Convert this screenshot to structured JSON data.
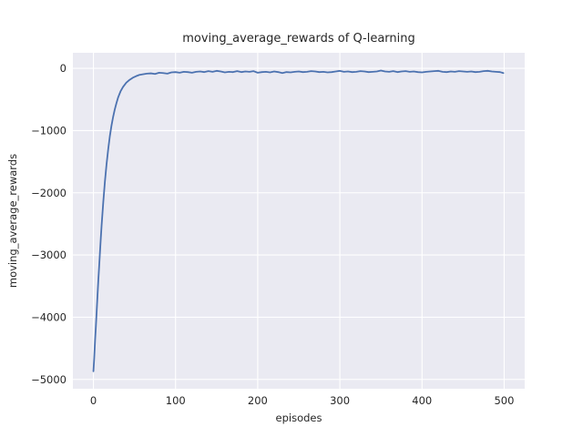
{
  "figure": {
    "background": "#ffffff"
  },
  "chart_data": {
    "type": "line",
    "title": "moving_average_rewards of Q-learning",
    "xlabel": "episodes",
    "ylabel": "moving_average_rewards",
    "xlim": [
      -25,
      525
    ],
    "ylim": [
      -5150,
      250
    ],
    "x_ticks": [
      0,
      100,
      200,
      300,
      400,
      500
    ],
    "y_ticks": [
      0,
      -1000,
      -2000,
      -3000,
      -4000,
      -5000
    ],
    "grid": true,
    "legend_position": "none",
    "plot_background": "#eaeaf2",
    "grid_color": "#ffffff",
    "line_color": "#4c72b0",
    "series": [
      {
        "name": "moving_average_rewards",
        "points": [
          [
            0,
            -4870
          ],
          [
            1,
            -4650
          ],
          [
            2,
            -4380
          ],
          [
            3,
            -4150
          ],
          [
            4,
            -3900
          ],
          [
            5,
            -3650
          ],
          [
            6,
            -3400
          ],
          [
            7,
            -3180
          ],
          [
            8,
            -2950
          ],
          [
            9,
            -2730
          ],
          [
            10,
            -2520
          ],
          [
            12,
            -2150
          ],
          [
            14,
            -1820
          ],
          [
            16,
            -1540
          ],
          [
            18,
            -1300
          ],
          [
            20,
            -1090
          ],
          [
            22,
            -920
          ],
          [
            24,
            -780
          ],
          [
            26,
            -660
          ],
          [
            28,
            -560
          ],
          [
            30,
            -470
          ],
          [
            33,
            -370
          ],
          [
            36,
            -300
          ],
          [
            40,
            -230
          ],
          [
            44,
            -185
          ],
          [
            48,
            -150
          ],
          [
            52,
            -125
          ],
          [
            56,
            -105
          ],
          [
            60,
            -95
          ],
          [
            65,
            -85
          ],
          [
            70,
            -80
          ],
          [
            75,
            -90
          ],
          [
            80,
            -70
          ],
          [
            85,
            -75
          ],
          [
            90,
            -85
          ],
          [
            95,
            -65
          ],
          [
            100,
            -60
          ],
          [
            105,
            -70
          ],
          [
            110,
            -55
          ],
          [
            115,
            -60
          ],
          [
            120,
            -70
          ],
          [
            125,
            -55
          ],
          [
            130,
            -50
          ],
          [
            135,
            -60
          ],
          [
            140,
            -45
          ],
          [
            145,
            -55
          ],
          [
            150,
            -40
          ],
          [
            155,
            -50
          ],
          [
            160,
            -65
          ],
          [
            165,
            -55
          ],
          [
            170,
            -60
          ],
          [
            175,
            -45
          ],
          [
            180,
            -60
          ],
          [
            185,
            -50
          ],
          [
            190,
            -55
          ],
          [
            195,
            -45
          ],
          [
            200,
            -70
          ],
          [
            205,
            -60
          ],
          [
            210,
            -55
          ],
          [
            215,
            -65
          ],
          [
            220,
            -50
          ],
          [
            225,
            -60
          ],
          [
            230,
            -75
          ],
          [
            235,
            -60
          ],
          [
            240,
            -65
          ],
          [
            245,
            -55
          ],
          [
            250,
            -50
          ],
          [
            255,
            -60
          ],
          [
            260,
            -55
          ],
          [
            265,
            -45
          ],
          [
            270,
            -50
          ],
          [
            275,
            -60
          ],
          [
            280,
            -55
          ],
          [
            285,
            -65
          ],
          [
            290,
            -60
          ],
          [
            295,
            -50
          ],
          [
            300,
            -40
          ],
          [
            305,
            -55
          ],
          [
            310,
            -50
          ],
          [
            315,
            -60
          ],
          [
            320,
            -55
          ],
          [
            325,
            -45
          ],
          [
            330,
            -50
          ],
          [
            335,
            -60
          ],
          [
            340,
            -55
          ],
          [
            345,
            -50
          ],
          [
            350,
            -35
          ],
          [
            355,
            -50
          ],
          [
            360,
            -55
          ],
          [
            365,
            -45
          ],
          [
            370,
            -60
          ],
          [
            375,
            -50
          ],
          [
            380,
            -45
          ],
          [
            385,
            -55
          ],
          [
            390,
            -50
          ],
          [
            395,
            -60
          ],
          [
            400,
            -65
          ],
          [
            405,
            -55
          ],
          [
            410,
            -50
          ],
          [
            415,
            -45
          ],
          [
            420,
            -40
          ],
          [
            425,
            -55
          ],
          [
            430,
            -60
          ],
          [
            435,
            -50
          ],
          [
            440,
            -55
          ],
          [
            445,
            -45
          ],
          [
            450,
            -50
          ],
          [
            455,
            -55
          ],
          [
            460,
            -50
          ],
          [
            465,
            -60
          ],
          [
            470,
            -55
          ],
          [
            475,
            -45
          ],
          [
            480,
            -40
          ],
          [
            485,
            -50
          ],
          [
            490,
            -55
          ],
          [
            495,
            -60
          ],
          [
            499,
            -75
          ]
        ]
      }
    ]
  }
}
